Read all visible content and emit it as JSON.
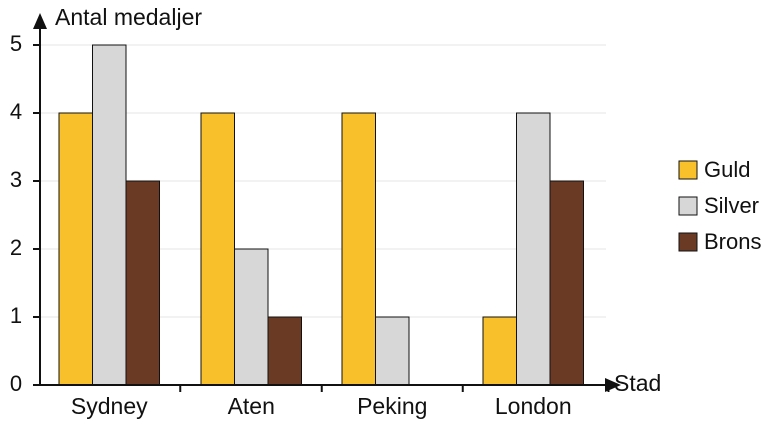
{
  "chart_data": {
    "type": "bar",
    "title": "",
    "ylabel": "Antal medaljer",
    "xlabel": "Stad",
    "categories": [
      "Sydney",
      "Aten",
      "Peking",
      "London"
    ],
    "series": [
      {
        "name": "Guld",
        "values": [
          4,
          4,
          4,
          1
        ],
        "color": "#F8C12C"
      },
      {
        "name": "Silver",
        "values": [
          5,
          2,
          1,
          4
        ],
        "color": "#D7D7D7"
      },
      {
        "name": "Brons",
        "values": [
          3,
          1,
          0,
          3
        ],
        "color": "#6A3A24"
      }
    ],
    "ylim": [
      0,
      5
    ],
    "yticks": [
      "0",
      "1",
      "2",
      "3",
      "4",
      "5"
    ],
    "grid": true,
    "legend_position": "right"
  }
}
